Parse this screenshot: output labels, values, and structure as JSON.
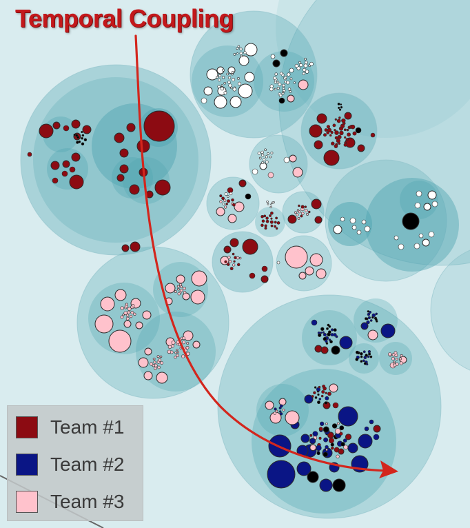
{
  "title": "Temporal Coupling",
  "colors": {
    "background": "#d9ecef",
    "region_fill": "#9fd0d6",
    "team1": "#8c0b12",
    "team2": "#0a1585",
    "team3": "#ffc2cc",
    "unassigned_white": "#ffffff",
    "unassigned_black": "#000000",
    "arrow": "#d3261d"
  },
  "legend": {
    "items": [
      {
        "label": "Team #1",
        "color": "#8c0b12"
      },
      {
        "label": "Team #2",
        "color": "#0a1585"
      },
      {
        "label": "Team #3",
        "color": "#ffc2cc"
      }
    ]
  }
}
